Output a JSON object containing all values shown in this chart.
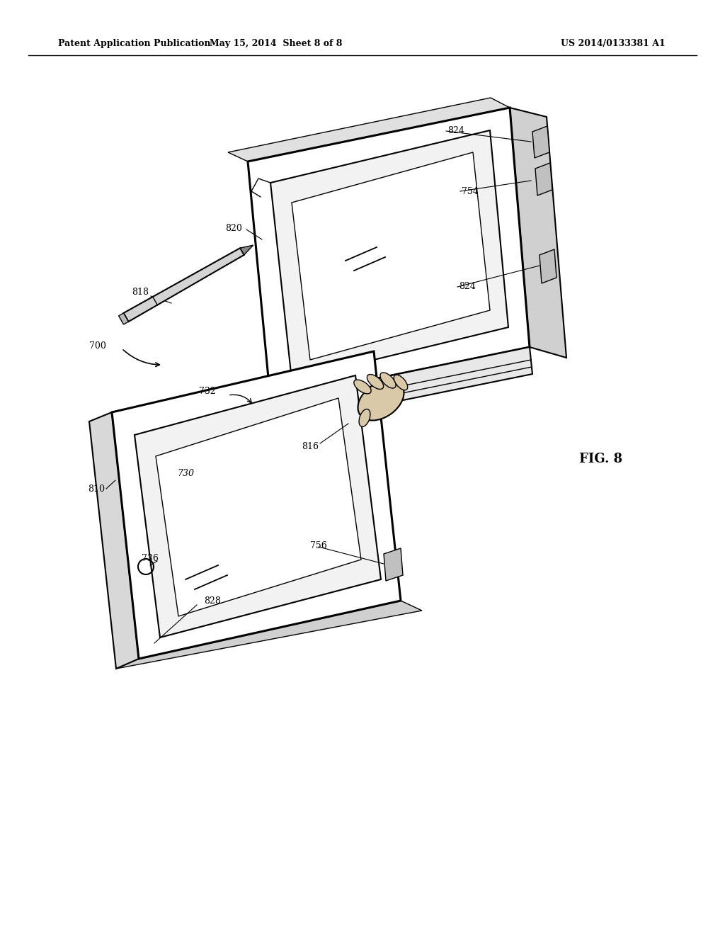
{
  "bg_color": "#ffffff",
  "line_color": "#000000",
  "header_left": "Patent Application Publication",
  "header_center": "May 15, 2014  Sheet 8 of 8",
  "header_right": "US 2014/0133381 A1",
  "fig_label": "FIG. 8"
}
